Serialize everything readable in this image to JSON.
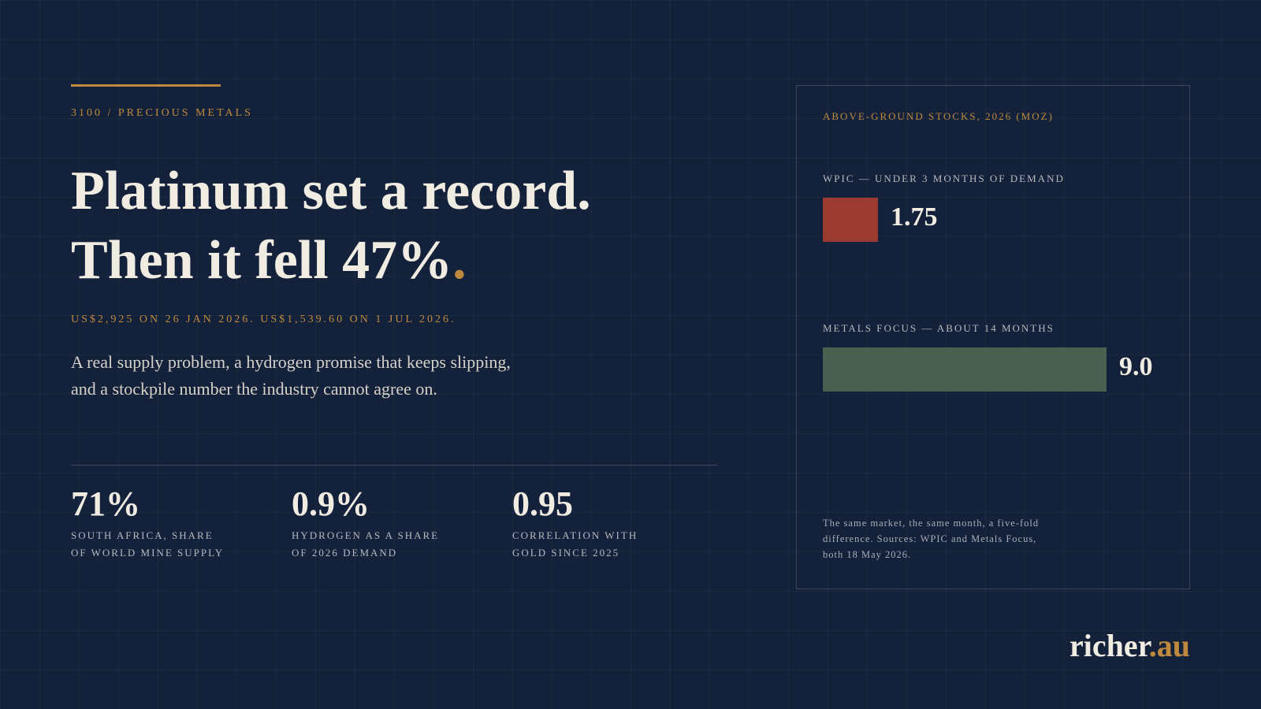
{
  "kicker": "3100 / PRECIOUS METALS",
  "headline": {
    "lines": [
      "Platinum set a record.",
      "Then it fell 47%"
    ],
    "accent": "."
  },
  "subline": "US$2,925 ON 26 JAN 2026. US$1,539.60 ON 1 JUL 2026.",
  "body": [
    "A real supply problem, a hydrogen promise that keeps slipping,",
    "and a stockpile number the industry cannot agree on."
  ],
  "stats": [
    {
      "value": "71%",
      "label": [
        "SOUTH AFRICA, SHARE",
        "OF WORLD MINE SUPPLY"
      ]
    },
    {
      "value": "0.9%",
      "label": [
        "HYDROGEN AS A SHARE",
        "OF 2026 DEMAND"
      ]
    },
    {
      "value": "0.95",
      "label": [
        "CORRELATION WITH",
        "GOLD SINCE 2025"
      ]
    }
  ],
  "chart_data": {
    "type": "bar",
    "orientation": "horizontal",
    "title": "ABOVE-GROUND STOCKS, 2026 (MOZ)",
    "categories": [
      "WPIC — UNDER 3 MONTHS OF DEMAND",
      "METALS FOCUS — ABOUT 14 MONTHS"
    ],
    "values": [
      1.75,
      9.0
    ],
    "value_labels": [
      "1.75",
      "9.0"
    ],
    "colors": [
      "#9b3a2e",
      "#4b5f50"
    ],
    "note": [
      "The same market, the same month, a five-fold",
      "difference. Sources: WPIC and Metals Focus,",
      "both 18 May 2026."
    ]
  },
  "brand": {
    "name": "richer",
    "suffix": ".au"
  }
}
